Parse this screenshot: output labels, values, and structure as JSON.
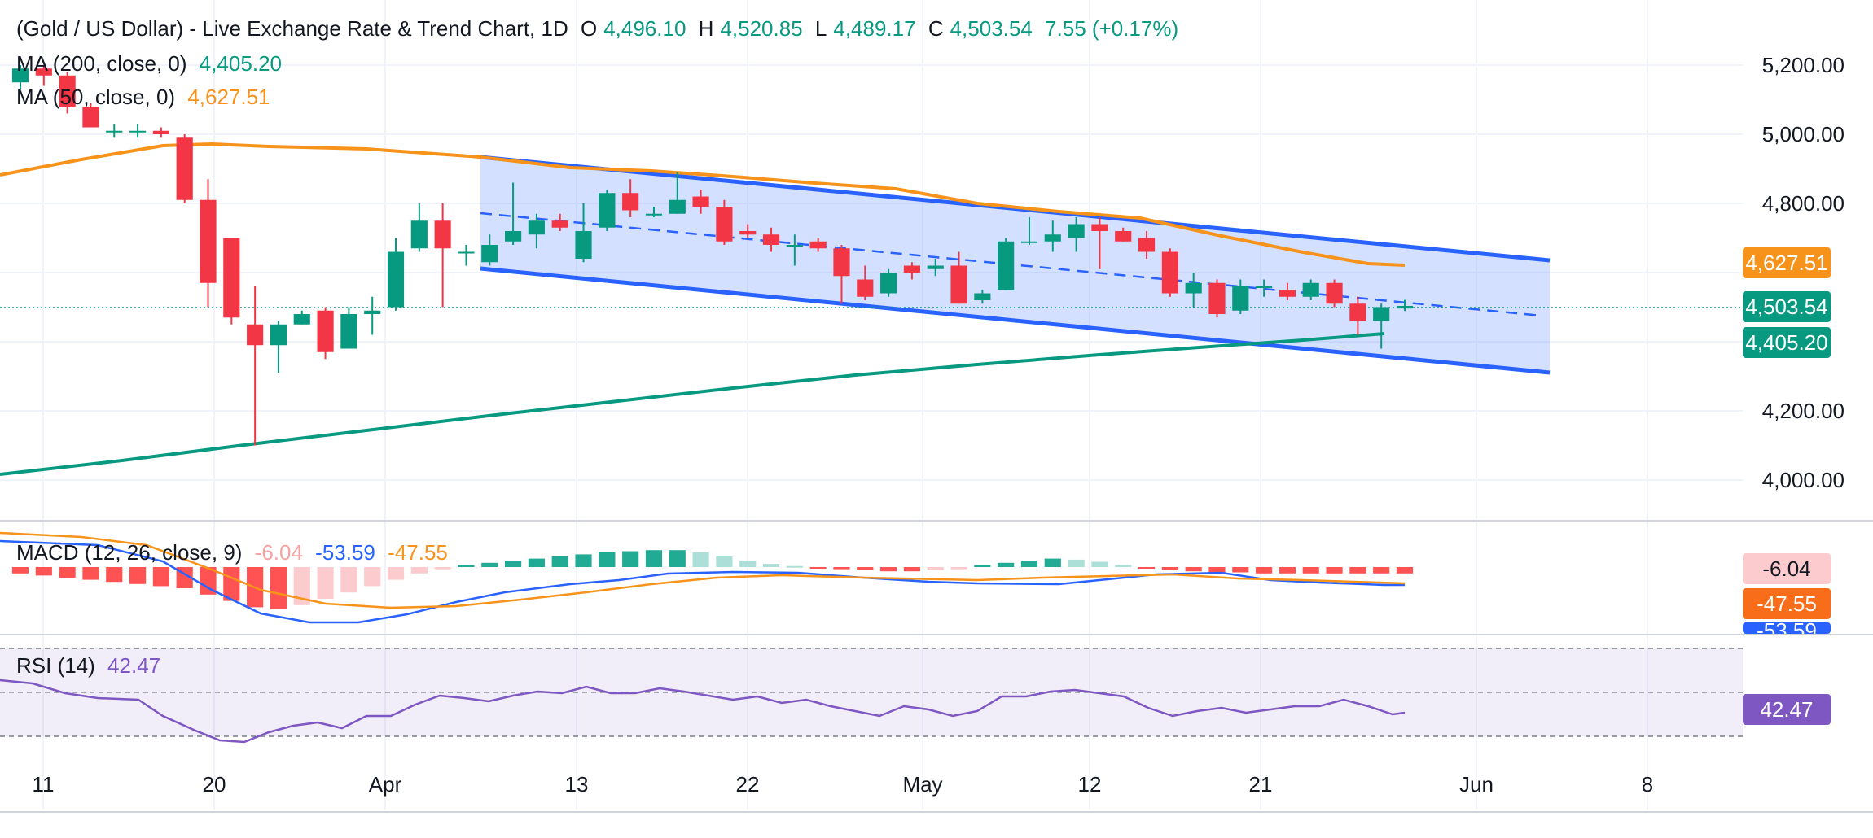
{
  "header": {
    "title": "(Gold / US Dollar) - Live Exchange Rate & Trend Chart, 1D",
    "o_label": "O",
    "o_value": "4,496.10",
    "h_label": "H",
    "h_value": "4,520.85",
    "l_label": "L",
    "l_value": "4,489.17",
    "c_label": "C",
    "c_value": "4,503.54",
    "change": "7.55 (+0.17%)"
  },
  "indicators": {
    "ma200": {
      "label": "MA (200, close, 0)",
      "value": "4,405.20"
    },
    "ma50": {
      "label": "MA (50, close, 0)",
      "value": "4,627.51"
    },
    "macd": {
      "label": "MACD (12, 26, close, 9)",
      "hist": "-6.04",
      "macd": "-53.59",
      "signal": "-47.55"
    },
    "rsi": {
      "label": "RSI (14)",
      "value": "42.47"
    }
  },
  "badges": {
    "ma50": "4,627.51",
    "close": "4,503.54",
    "ma200": "4,405.20",
    "macd_hist": "-6.04",
    "macd_signal": "-47.55",
    "macd_line": "-53.59",
    "rsi": "42.47"
  },
  "colors": {
    "up": "#089981",
    "down": "#f23645",
    "ma200": "#089981",
    "ma50": "#f7931a",
    "channel": "#2962ff",
    "macd": "#2962ff",
    "signal": "#f7931a",
    "rsi": "#7e57c2"
  },
  "chart_data": {
    "type": "candlestick",
    "symbol": "Gold / US Dollar",
    "interval": "1D",
    "price_axis": {
      "ticks": [
        "5,200.00",
        "5,000.00",
        "4,800.00",
        "4,200.00",
        "4,000.00"
      ],
      "ylim": [
        3900,
        5300
      ]
    },
    "x_axis": {
      "ticks": [
        "11",
        "20",
        "Apr",
        "13",
        "22",
        "May",
        "12",
        "21",
        "Jun",
        "8"
      ]
    },
    "candles": [
      [
        5150,
        5200,
        5130,
        5190
      ],
      [
        5190,
        5200,
        5140,
        5170
      ],
      [
        5170,
        5180,
        5060,
        5080
      ],
      [
        5080,
        5090,
        5020,
        5020
      ],
      [
        5010,
        5030,
        4990,
        5010
      ],
      [
        5010,
        5030,
        4990,
        5010
      ],
      [
        5010,
        5020,
        4990,
        5000
      ],
      [
        4990,
        5000,
        4800,
        4810
      ],
      [
        4810,
        4870,
        4500,
        4570
      ],
      [
        4700,
        4700,
        4450,
        4470
      ],
      [
        4450,
        4560,
        4100,
        4390
      ],
      [
        4390,
        4460,
        4310,
        4450
      ],
      [
        4450,
        4490,
        4450,
        4480
      ],
      [
        4490,
        4500,
        4350,
        4370
      ],
      [
        4380,
        4500,
        4380,
        4480
      ],
      [
        4480,
        4530,
        4420,
        4490
      ],
      [
        4500,
        4700,
        4490,
        4660
      ],
      [
        4670,
        4800,
        4660,
        4750
      ],
      [
        4750,
        4800,
        4500,
        4670
      ],
      [
        4660,
        4680,
        4620,
        4660
      ],
      [
        4630,
        4710,
        4620,
        4680
      ],
      [
        4690,
        4860,
        4680,
        4720
      ],
      [
        4710,
        4770,
        4670,
        4750
      ],
      [
        4750,
        4770,
        4720,
        4730
      ],
      [
        4640,
        4800,
        4630,
        4720
      ],
      [
        4730,
        4840,
        4720,
        4830
      ],
      [
        4830,
        4870,
        4760,
        4780
      ],
      [
        4770,
        4790,
        4760,
        4770
      ],
      [
        4770,
        4890,
        4770,
        4810
      ],
      [
        4820,
        4840,
        4770,
        4790
      ],
      [
        4790,
        4810,
        4680,
        4690
      ],
      [
        4720,
        4740,
        4700,
        4710
      ],
      [
        4710,
        4730,
        4660,
        4680
      ],
      [
        4680,
        4710,
        4620,
        4680
      ],
      [
        4690,
        4700,
        4660,
        4670
      ],
      [
        4670,
        4680,
        4510,
        4590
      ],
      [
        4580,
        4620,
        4520,
        4530
      ],
      [
        4540,
        4610,
        4530,
        4600
      ],
      [
        4620,
        4630,
        4580,
        4600
      ],
      [
        4610,
        4640,
        4590,
        4620
      ],
      [
        4620,
        4660,
        4510,
        4510
      ],
      [
        4520,
        4550,
        4510,
        4540
      ],
      [
        4550,
        4700,
        4550,
        4690
      ],
      [
        4690,
        4760,
        4680,
        4690
      ],
      [
        4690,
        4750,
        4660,
        4710
      ],
      [
        4700,
        4760,
        4660,
        4740
      ],
      [
        4740,
        4760,
        4610,
        4720
      ],
      [
        4720,
        4730,
        4690,
        4690
      ],
      [
        4700,
        4720,
        4640,
        4660
      ],
      [
        4660,
        4670,
        4530,
        4540
      ],
      [
        4540,
        4600,
        4500,
        4570
      ],
      [
        4570,
        4580,
        4470,
        4480
      ],
      [
        4490,
        4580,
        4480,
        4560
      ],
      [
        4560,
        4580,
        4530,
        4560
      ],
      [
        4550,
        4570,
        4520,
        4530
      ],
      [
        4530,
        4580,
        4520,
        4570
      ],
      [
        4570,
        4580,
        4500,
        4510
      ],
      [
        4510,
        4530,
        4420,
        4460
      ],
      [
        4460,
        4510,
        4380,
        4500
      ],
      [
        4496.1,
        4520.85,
        4489.17,
        4503.54
      ]
    ],
    "candle_dates": [
      "11",
      "20",
      "Apr",
      "13",
      "22",
      "May",
      "12",
      "21"
    ],
    "ma200": [
      4020,
      4090,
      4150,
      4220,
      4300,
      4370,
      4405.2
    ],
    "ma50": [
      4890,
      4970,
      4955,
      4920,
      4870,
      4760,
      4700,
      4640,
      4627.51
    ],
    "channel": {
      "upper": [
        4938,
        4640
      ],
      "lower": [
        4612,
        4316
      ],
      "mid": [
        4775,
        4478
      ]
    },
    "macd_panel": {
      "hist": "-6.04",
      "macd": "-53.59",
      "signal": "-47.55"
    },
    "rsi_panel": {
      "value": "42.47",
      "levels": [
        70,
        50,
        30
      ]
    }
  }
}
